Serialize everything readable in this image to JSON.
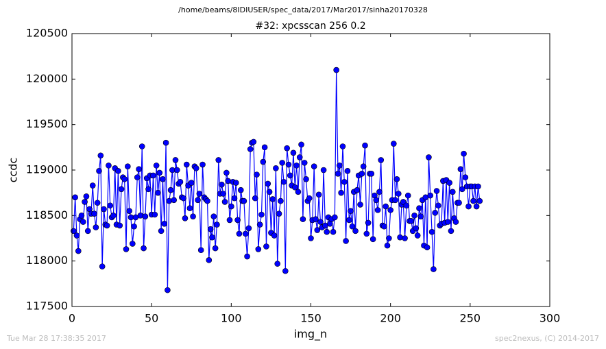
{
  "chart_data": {
    "type": "line",
    "suptitle": "/home/beams/8IDIUSER/spec_data/2017/Mar2017/sinha20170328",
    "title": "#32: xpcsscan 256 0.2",
    "xlabel": "img_n",
    "ylabel": "ccdc",
    "footer_left": "Tue Mar 28 17:38:35 2017",
    "footer_right": "spec2nexus, (C) 2014-2017",
    "color": "#0000ff",
    "xlim": [
      0,
      300
    ],
    "xticks": [
      0,
      50,
      100,
      150,
      200,
      250,
      300
    ],
    "ylim": [
      117500,
      120500
    ],
    "yticks": [
      117500,
      118000,
      118500,
      119000,
      119500,
      120000,
      120500
    ],
    "grid": false,
    "x": [
      1,
      2,
      3,
      4,
      5,
      6,
      7,
      8,
      9,
      10,
      11,
      12,
      13,
      14,
      15,
      16,
      17,
      18,
      19,
      20,
      21,
      22,
      23,
      24,
      25,
      26,
      27,
      28,
      29,
      30,
      31,
      32,
      33,
      34,
      35,
      36,
      37,
      38,
      39,
      40,
      41,
      42,
      43,
      44,
      45,
      46,
      47,
      48,
      49,
      50,
      51,
      52,
      53,
      54,
      55,
      56,
      57,
      58,
      59,
      60,
      61,
      62,
      63,
      64,
      65,
      66,
      67,
      68,
      69,
      70,
      71,
      72,
      73,
      74,
      75,
      76,
      77,
      78,
      79,
      80,
      81,
      82,
      83,
      84,
      85,
      86,
      87,
      88,
      89,
      90,
      91,
      92,
      93,
      94,
      95,
      96,
      97,
      98,
      99,
      100,
      101,
      102,
      103,
      104,
      105,
      106,
      107,
      108,
      109,
      110,
      111,
      112,
      113,
      114,
      115,
      116,
      117,
      118,
      119,
      120,
      121,
      122,
      123,
      124,
      125,
      126,
      127,
      128,
      129,
      130,
      131,
      132,
      133,
      134,
      135,
      136,
      137,
      138,
      139,
      140,
      141,
      142,
      143,
      144,
      145,
      146,
      147,
      148,
      149,
      150,
      151,
      152,
      153,
      154,
      155,
      156,
      157,
      158,
      159,
      160,
      161,
      162,
      163,
      164,
      165,
      166,
      167,
      168,
      169,
      170,
      171,
      172,
      173,
      174,
      175,
      176,
      177,
      178,
      179,
      180,
      181,
      182,
      183,
      184,
      185,
      186,
      187,
      188,
      189,
      190,
      191,
      192,
      193,
      194,
      195,
      196,
      197,
      198,
      199,
      200,
      201,
      202,
      203,
      204,
      205,
      206,
      207,
      208,
      209,
      210,
      211,
      212,
      213,
      214,
      215,
      216,
      217,
      218,
      219,
      220,
      221,
      222,
      223,
      224,
      225,
      226,
      227,
      228,
      229,
      230,
      231,
      232,
      233,
      234,
      235,
      236,
      237,
      238,
      239,
      240,
      241,
      242,
      243,
      244,
      245,
      246,
      247,
      248,
      249,
      250,
      251,
      252,
      253,
      254,
      255,
      256
    ],
    "values": [
      118330,
      118700,
      118280,
      118110,
      118460,
      118500,
      118430,
      118650,
      118710,
      118330,
      118570,
      118520,
      118830,
      118520,
      118370,
      118640,
      118990,
      119160,
      117940,
      118570,
      118400,
      118390,
      119050,
      118610,
      118480,
      118500,
      119020,
      118400,
      118990,
      118390,
      118790,
      118920,
      118900,
      118130,
      119040,
      118550,
      118480,
      118190,
      118380,
      118480,
      118920,
      119010,
      118500,
      119260,
      118140,
      118490,
      118910,
      118790,
      118940,
      118510,
      118940,
      118510,
      119050,
      118750,
      118970,
      118330,
      118900,
      118410,
      119300,
      117680,
      118660,
      118780,
      119000,
      118670,
      119110,
      119000,
      118850,
      118870,
      118700,
      118690,
      118470,
      119060,
      118830,
      118580,
      118860,
      118490,
      119040,
      119020,
      118670,
      118740,
      118120,
      119060,
      118700,
      118680,
      118660,
      118010,
      118350,
      118260,
      118490,
      118140,
      118400,
      119110,
      118740,
      118840,
      118740,
      118650,
      118970,
      118880,
      118450,
      118600,
      118870,
      118690,
      118860,
      118450,
      118300,
      118780,
      118660,
      118660,
      118300,
      118050,
      118360,
      119230,
      119300,
      119310,
      118690,
      118950,
      118130,
      118400,
      118510,
      119090,
      119250,
      118160,
      118850,
      118760,
      118310,
      118680,
      118280,
      119020,
      117970,
      118520,
      118660,
      119080,
      118870,
      117890,
      119240,
      119060,
      118940,
      118830,
      119190,
      118810,
      119050,
      118760,
      119140,
      119280,
      118460,
      119080,
      118900,
      118660,
      118690,
      118250,
      118450,
      119040,
      118460,
      118340,
      118730,
      118430,
      118370,
      119000,
      118390,
      118320,
      118480,
      118410,
      118460,
      118320,
      118480,
      120100,
      118960,
      119050,
      118750,
      119260,
      118870,
      118220,
      118990,
      118450,
      118550,
      118380,
      118760,
      118330,
      118780,
      118940,
      118620,
      118960,
      119040,
      119270,
      118300,
      118420,
      118960,
      118960,
      118240,
      118720,
      118670,
      118560,
      118760,
      119110,
      118390,
      118380,
      118600,
      118170,
      118250,
      118560,
      118670,
      119290,
      118670,
      118900,
      118740,
      118260,
      118620,
      118650,
      118250,
      118610,
      118720,
      118440,
      118440,
      118330,
      118500,
      118360,
      118280,
      118580,
      118490,
      118670,
      118170,
      118700,
      118150,
      119140,
      118720,
      118320,
      117910,
      118530,
      118770,
      118610,
      118390,
      118410,
      118880,
      118420,
      118890,
      118430,
      118860,
      118330,
      118760,
      118470,
      118430,
      118640,
      118640,
      119010,
      118790,
      119180,
      118920,
      118820,
      118600,
      118820,
      118820,
      118660,
      118820,
      118600,
      118820,
      118660
    ]
  }
}
